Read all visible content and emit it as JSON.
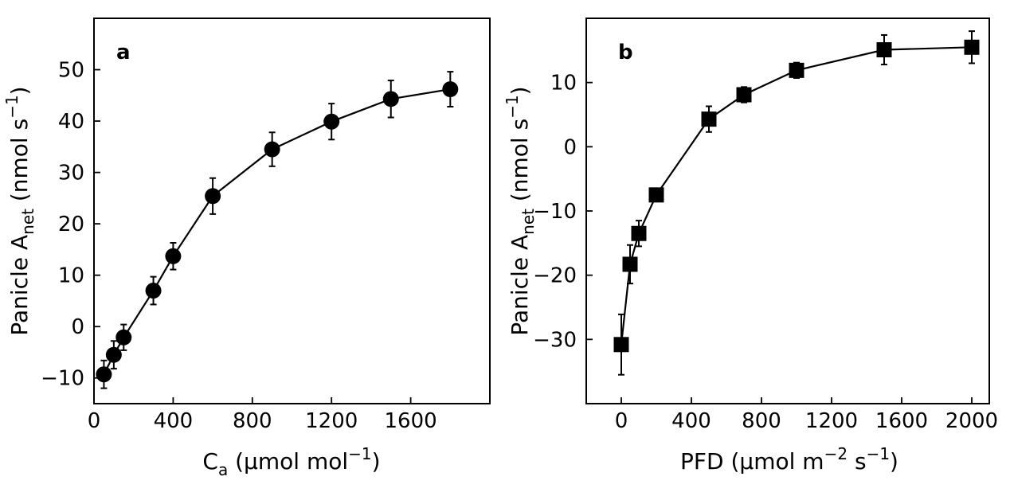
{
  "chart_data": [
    {
      "panel_label": "a",
      "type": "line",
      "marker": "circle",
      "xlabel": {
        "main": "C",
        "sub": "a",
        "rest": " (µmol mol",
        "sup": "−1",
        "close": ")"
      },
      "ylabel": {
        "main": "Panicle A",
        "sub": "net",
        "rest": " (nmol s",
        "sup": "−1",
        "close": ")"
      },
      "xlim": [
        0,
        2000
      ],
      "ylim": [
        -15,
        60
      ],
      "xticks": [
        0,
        400,
        800,
        1200,
        1600
      ],
      "xtick_labels": [
        "0",
        "400",
        "800",
        "1200",
        "1600"
      ],
      "yticks": [
        -10,
        0,
        10,
        20,
        30,
        40,
        50
      ],
      "ytick_labels": [
        "−10",
        "0",
        "10",
        "20",
        "30",
        "40",
        "50"
      ],
      "grid": false,
      "x": [
        50,
        100,
        150,
        300,
        400,
        600,
        900,
        1200,
        1500,
        1800
      ],
      "y": [
        -9.3,
        -5.5,
        -2.1,
        7.0,
        13.7,
        25.4,
        34.5,
        39.9,
        44.3,
        46.2
      ],
      "yerr": [
        2.7,
        2.7,
        2.5,
        2.7,
        2.6,
        3.5,
        3.3,
        3.5,
        3.6,
        3.4
      ]
    },
    {
      "panel_label": "b",
      "type": "line",
      "marker": "square",
      "xlabel": {
        "main": "PFD (µmol m",
        "sup1": "−2",
        "mid": " s",
        "sup2": "−1",
        "close": ")"
      },
      "ylabel": {
        "main": "Panicle A",
        "sub": "net",
        "rest": " (nmol s",
        "sup": "−1",
        "close": ")"
      },
      "xlim": [
        -200,
        2100
      ],
      "ylim": [
        -40,
        20
      ],
      "xticks": [
        0,
        400,
        800,
        1200,
        1600,
        2000
      ],
      "xtick_labels": [
        "0",
        "400",
        "800",
        "1200",
        "1600",
        "2000"
      ],
      "yticks": [
        -30,
        -20,
        -10,
        0,
        10
      ],
      "ytick_labels": [
        "−30",
        "−20",
        "−10",
        "0",
        "10"
      ],
      "grid": false,
      "x": [
        0,
        50,
        100,
        200,
        500,
        700,
        1000,
        1500,
        2000
      ],
      "y": [
        -30.8,
        -18.3,
        -13.5,
        -7.5,
        4.3,
        8.1,
        11.9,
        15.1,
        15.5
      ],
      "yerr": [
        4.7,
        3.0,
        2.0,
        1.0,
        2.0,
        1.2,
        1.2,
        2.3,
        2.5
      ]
    }
  ]
}
